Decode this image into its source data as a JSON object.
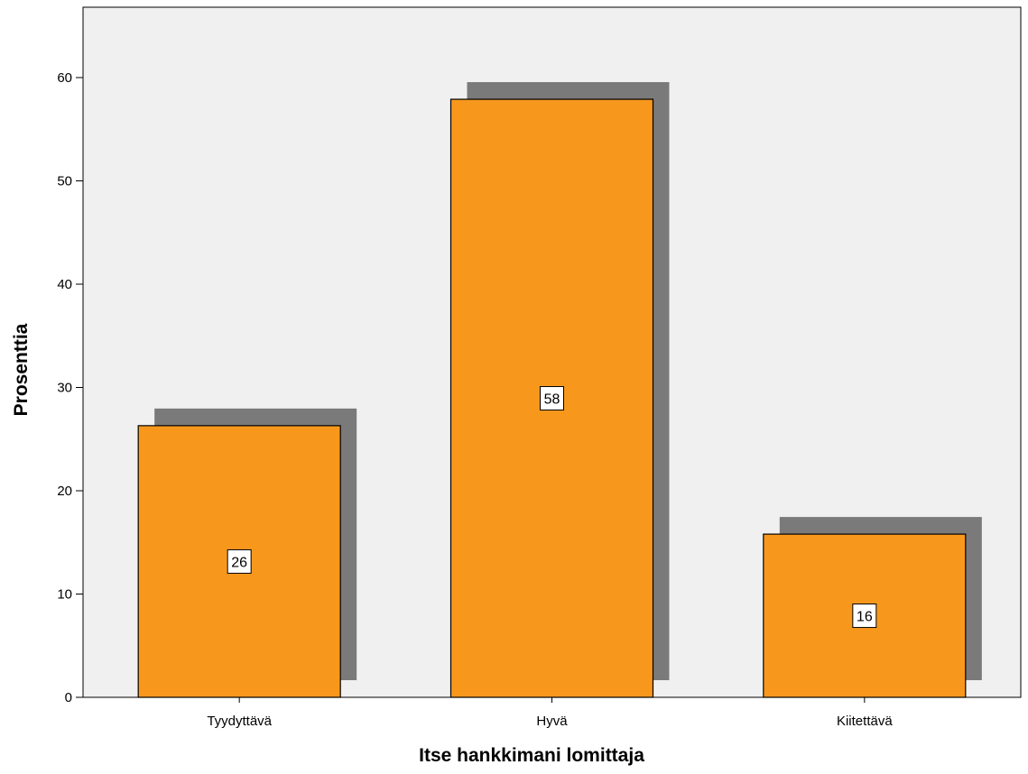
{
  "chart_data": {
    "type": "bar",
    "categories": [
      "Tyydyttävä",
      "Hyvä",
      "Kiitettävä"
    ],
    "values": [
      26.3,
      57.9,
      15.8
    ],
    "data_labels": [
      "26",
      "58",
      "16"
    ],
    "title": "",
    "xlabel": "Itse hankkimani lomittaja",
    "ylabel": "Prosenttia",
    "ylim": [
      0,
      66
    ],
    "yticks": [
      0,
      10,
      20,
      30,
      40,
      50,
      60
    ],
    "grid": false,
    "legend": "none",
    "bar_color": "#f7981d",
    "shadow_color": "#7a7a7a",
    "plot_background": "#f0f0f0"
  }
}
